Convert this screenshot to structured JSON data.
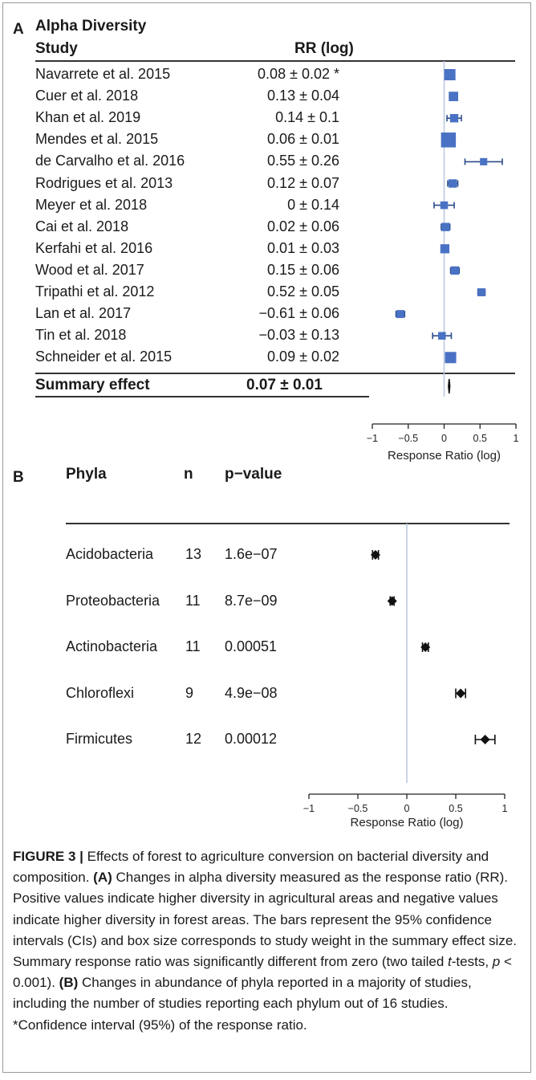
{
  "panelA": {
    "letter": "A",
    "title": "Alpha Diversity",
    "col_study": "Study",
    "col_rr": "RR (log)",
    "summary_label": "Summary effect",
    "summary_value": "0.07 ± 0.01",
    "axis_title": "Response Ratio (log)"
  },
  "panelB": {
    "letter": "B",
    "col_phyla": "Phyla",
    "col_n": "n",
    "col_p": "p−value",
    "axis_title": "Response Ratio (log)"
  },
  "chart_data": [
    {
      "type": "forest",
      "title": "Alpha Diversity",
      "xlabel": "Response Ratio (log)",
      "xlim": [
        -1,
        1
      ],
      "xticks": [
        "−1",
        "−0.5",
        "0",
        "0.5",
        "1"
      ],
      "xtick_values": [
        -1,
        -0.5,
        0,
        0.5,
        1
      ],
      "marker_color": "#4a72c4",
      "studies": [
        {
          "study": "Navarrete et al. 2015",
          "rr_text": "0.08 ± 0.02 *",
          "rr": 0.08,
          "ci": 0.02,
          "weight": 1.0
        },
        {
          "study": "Cuer et al. 2018",
          "rr_text": "0.13 ± 0.04",
          "rr": 0.13,
          "ci": 0.04,
          "weight": 0.75
        },
        {
          "study": "Khan et al. 2019",
          "rr_text": "0.14 ± 0.1",
          "rr": 0.14,
          "ci": 0.1,
          "weight": 0.6
        },
        {
          "study": "Mendes et al. 2015",
          "rr_text": "0.06 ± 0.01",
          "rr": 0.06,
          "ci": 0.01,
          "weight": 1.5
        },
        {
          "study": "de Carvalho et al. 2016",
          "rr_text": "0.55 ± 0.26",
          "rr": 0.55,
          "ci": 0.26,
          "weight": 0.45
        },
        {
          "study": "Rodrigues et al. 2013",
          "rr_text": "0.12 ± 0.07",
          "rr": 0.12,
          "ci": 0.07,
          "weight": 0.6
        },
        {
          "study": "Meyer et al. 2018",
          "rr_text": "0 ± 0.14",
          "rr": 0.0,
          "ci": 0.14,
          "weight": 0.5
        },
        {
          "study": "Cai et al. 2018",
          "rr_text": "0.02 ± 0.06",
          "rr": 0.02,
          "ci": 0.06,
          "weight": 0.6
        },
        {
          "study": "Kerfahi et al. 2016",
          "rr_text": "0.01 ± 0.03",
          "rr": 0.01,
          "ci": 0.03,
          "weight": 0.7
        },
        {
          "study": "Wood et al. 2017",
          "rr_text": "0.15 ± 0.06",
          "rr": 0.15,
          "ci": 0.06,
          "weight": 0.6
        },
        {
          "study": "Tripathi et al. 2012",
          "rr_text": "0.52 ± 0.05",
          "rr": 0.52,
          "ci": 0.05,
          "weight": 0.55
        },
        {
          "study": "Lan et al. 2017",
          "rr_text": "−0.61 ± 0.06",
          "rr": -0.61,
          "ci": 0.06,
          "weight": 0.55
        },
        {
          "study": "Tin et al. 2018",
          "rr_text": "−0.03 ± 0.13",
          "rr": -0.03,
          "ci": 0.13,
          "weight": 0.5
        },
        {
          "study": "Schneider et al. 2015",
          "rr_text": "0.09 ± 0.02",
          "rr": 0.09,
          "ci": 0.02,
          "weight": 1.0
        }
      ],
      "summary": {
        "label": "Summary effect",
        "rr": 0.07,
        "ci": 0.01
      }
    },
    {
      "type": "forest",
      "xlabel": "Response Ratio (log)",
      "xlim": [
        -1,
        1
      ],
      "xticks": [
        "−1",
        "−0.5",
        "0",
        "0.5",
        "1"
      ],
      "xtick_values": [
        -1,
        -0.5,
        0,
        0.5,
        1
      ],
      "marker_color": "#111111",
      "rows": [
        {
          "phylum": "Acidobacteria",
          "n": "13",
          "p": "1.6e−07",
          "rr": -0.32,
          "ci": 0.03
        },
        {
          "phylum": "Proteobacteria",
          "n": "11",
          "p": "8.7e−09",
          "rr": -0.15,
          "ci": 0.02
        },
        {
          "phylum": "Actinobacteria",
          "n": "11",
          "p": "0.00051",
          "rr": 0.19,
          "ci": 0.03
        },
        {
          "phylum": "Chloroflexi",
          "n": "9",
          "p": "4.9e−08",
          "rr": 0.55,
          "ci": 0.05
        },
        {
          "phylum": "Firmicutes",
          "n": "12",
          "p": "0.00012",
          "rr": 0.8,
          "ci": 0.1
        }
      ]
    }
  ],
  "caption": {
    "figure_label": "FIGURE 3 |",
    "p1": " Effects of forest to agriculture conversion on bacterial diversity and composition. ",
    "label_a": "(A)",
    "p2": " Changes in alpha diversity measured as the response ratio (RR). Positive values indicate higher diversity in agricultural areas and negative values indicate higher diversity in forest areas. The bars represent the 95% confidence intervals (CIs) and box size corresponds to study weight in the summary effect size. Summary response ratio was significantly different from zero (two tailed ",
    "t": "t",
    "p3": "-tests, ",
    "pvar": "p",
    "p4": " < 0.001). ",
    "label_b": "(B)",
    "p5": " Changes in abundance of phyla reported in a majority of studies, including the number of studies reporting each phylum out of 16 studies. *Confidence interval (95%) of the response ratio."
  }
}
